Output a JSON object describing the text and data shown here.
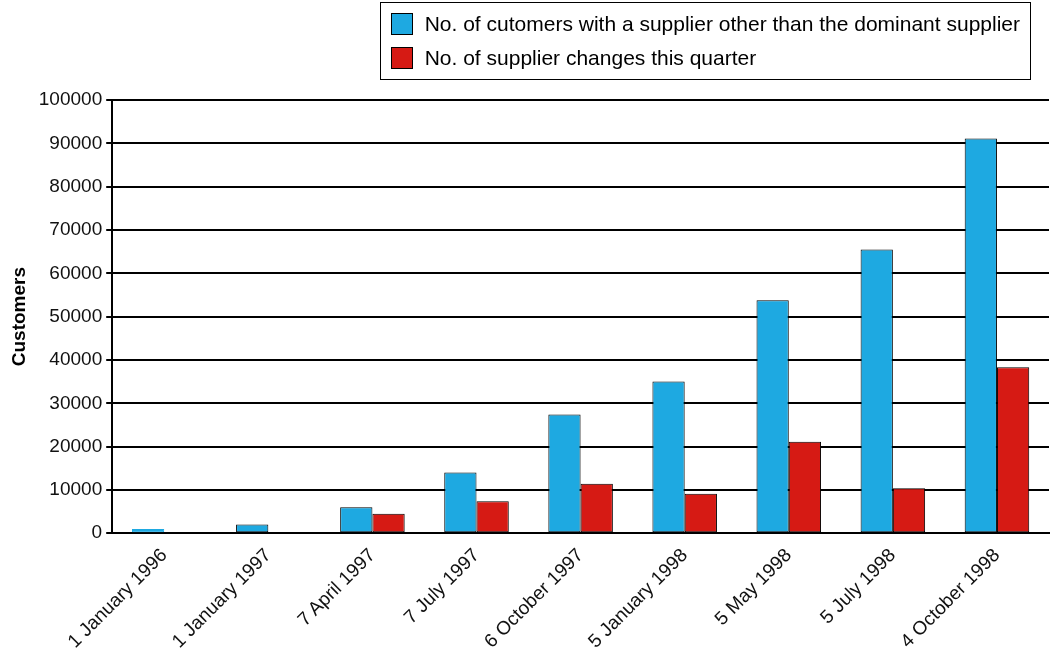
{
  "chart_data": {
    "type": "bar",
    "ylabel": "Customers",
    "categories": [
      "1 January 1996",
      "1 January 1997",
      "7 April 1997",
      "7 July 1997",
      "6 October 1997",
      "5 January 1998",
      "5 May 1998",
      "5 July 1998",
      "4 October 1998"
    ],
    "series": [
      {
        "name": "No. of cutomers with a supplier other than the dominant supplier",
        "color": "#1ea9e1",
        "values": [
          1000,
          2000,
          6000,
          14000,
          27400,
          35000,
          53800,
          65500,
          91100
        ]
      },
      {
        "name": "No. of supplier changes this quarter",
        "color": "#d61a14",
        "values": [
          null,
          null,
          4500,
          7400,
          11400,
          9100,
          21100,
          10400,
          38300
        ]
      }
    ],
    "ylim": [
      0,
      100000
    ],
    "yticks": [
      0,
      10000,
      20000,
      30000,
      40000,
      50000,
      60000,
      70000,
      80000,
      90000,
      100000
    ],
    "grid": "y",
    "legend": "top right"
  }
}
